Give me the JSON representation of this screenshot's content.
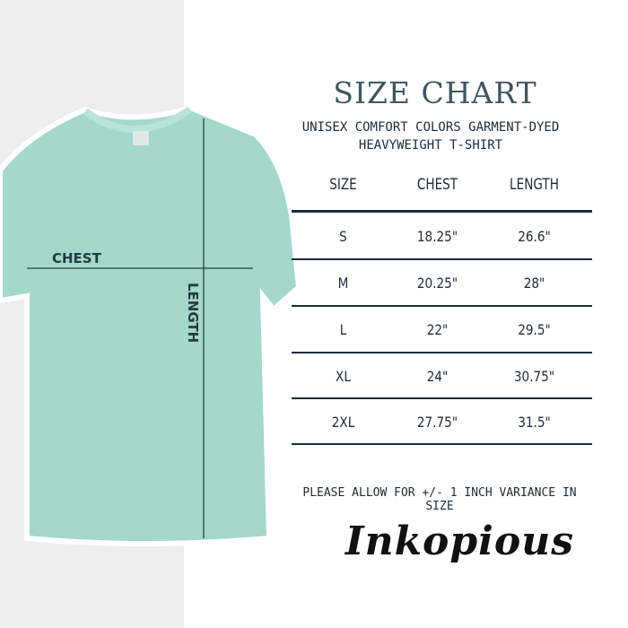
{
  "header": {
    "title": "SIZE CHART",
    "subtitle_line1": "UNISEX COMFORT COLORS GARMENT-DYED",
    "subtitle_line2": "HEAVYWEIGHT T-SHIRT"
  },
  "table": {
    "columns": [
      "SIZE",
      "CHEST",
      "LENGTH"
    ],
    "rows": [
      {
        "size": "S",
        "chest": "18.25\"",
        "length": "26.6\""
      },
      {
        "size": "M",
        "chest": "20.25\"",
        "length": "28\""
      },
      {
        "size": "L",
        "chest": "22\"",
        "length": "29.5\""
      },
      {
        "size": "XL",
        "chest": "24\"",
        "length": "30.75\""
      },
      {
        "size": "2XL",
        "chest": "27.75\"",
        "length": "31.5\""
      }
    ]
  },
  "diagram": {
    "chest_label": "CHEST",
    "length_label": "LENGTH",
    "shirt_color": "#a3d8cb"
  },
  "note": "PLEASE ALLOW FOR +/- 1 INCH VARIANCE IN SIZE",
  "brand": {
    "logo_text": "Inkopious"
  }
}
